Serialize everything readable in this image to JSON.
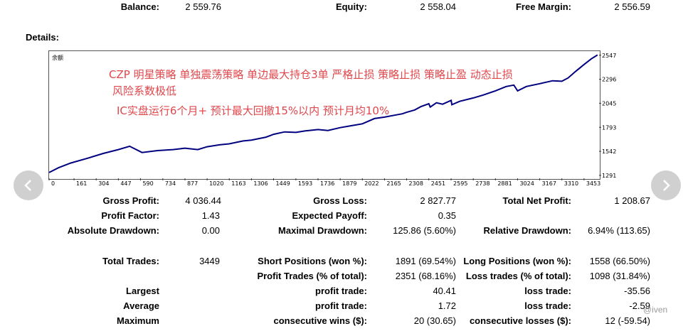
{
  "summary": {
    "balance_label": "Balance:",
    "balance_value": "2 559.76",
    "equity_label": "Equity:",
    "equity_value": "2 558.04",
    "free_margin_label": "Free Margin:",
    "free_margin_value": "2 556.59"
  },
  "details_label": "Details:",
  "chart_data": {
    "type": "line",
    "series": [
      {
        "name": "余额",
        "color": "#000080",
        "points": [
          [
            0,
            1320
          ],
          [
            60,
            1370
          ],
          [
            140,
            1420
          ],
          [
            250,
            1470
          ],
          [
            350,
            1520
          ],
          [
            447,
            1560
          ],
          [
            520,
            1595
          ],
          [
            600,
            1530
          ],
          [
            700,
            1550
          ],
          [
            800,
            1560
          ],
          [
            877,
            1575
          ],
          [
            960,
            1560
          ],
          [
            1020,
            1590
          ],
          [
            1100,
            1610
          ],
          [
            1163,
            1620
          ],
          [
            1250,
            1650
          ],
          [
            1306,
            1660
          ],
          [
            1400,
            1690
          ],
          [
            1449,
            1720
          ],
          [
            1520,
            1745
          ],
          [
            1593,
            1740
          ],
          [
            1650,
            1755
          ],
          [
            1736,
            1770
          ],
          [
            1800,
            1760
          ],
          [
            1879,
            1790
          ],
          [
            1950,
            1810
          ],
          [
            2022,
            1830
          ],
          [
            2100,
            1885
          ],
          [
            2165,
            1900
          ],
          [
            2230,
            1920
          ],
          [
            2280,
            1935
          ],
          [
            2308,
            1950
          ],
          [
            2360,
            1975
          ],
          [
            2400,
            2010
          ],
          [
            2451,
            2040
          ],
          [
            2460,
            2005
          ],
          [
            2500,
            2050
          ],
          [
            2540,
            2035
          ],
          [
            2595,
            2075
          ],
          [
            2600,
            2030
          ],
          [
            2650,
            2065
          ],
          [
            2738,
            2100
          ],
          [
            2800,
            2130
          ],
          [
            2881,
            2175
          ],
          [
            2950,
            2220
          ],
          [
            3000,
            2235
          ],
          [
            3024,
            2175
          ],
          [
            3080,
            2220
          ],
          [
            3167,
            2250
          ],
          [
            3250,
            2280
          ],
          [
            3310,
            2275
          ],
          [
            3350,
            2310
          ],
          [
            3400,
            2380
          ],
          [
            3453,
            2450
          ],
          [
            3500,
            2510
          ],
          [
            3540,
            2550
          ]
        ]
      }
    ],
    "x_ticks": [
      0,
      161,
      304,
      447,
      590,
      734,
      877,
      1020,
      1163,
      1306,
      1449,
      1593,
      1736,
      1879,
      2022,
      2165,
      2308,
      2451,
      2595,
      2738,
      2881,
      3024,
      3167,
      3310,
      3453
    ],
    "y_ticks": [
      2547,
      2296,
      2045,
      1793,
      1542,
      1291
    ],
    "xlim": [
      0,
      3550
    ],
    "ylim": [
      1260,
      2590
    ],
    "annotations": [
      "CZP 明星策略     单独震荡策略  单边最大持仓3单 严格止损 策略止损  策略止盈 动态止损",
      "风险系数极低",
      "IC实盘运行6个月+  预计最大回撤15%以内  预计月均10%"
    ],
    "annotation_color": "#e0474c"
  },
  "stats": {
    "gross_profit_label": "Gross Profit:",
    "gross_profit_value": "4 036.44",
    "gross_loss_label": "Gross Loss:",
    "gross_loss_value": "2 827.77",
    "total_net_profit_label": "Total Net Profit:",
    "total_net_profit_value": "1 208.67",
    "profit_factor_label": "Profit Factor:",
    "profit_factor_value": "1.43",
    "expected_payoff_label": "Expected Payoff:",
    "expected_payoff_value": "0.35",
    "abs_drawdown_label": "Absolute Drawdown:",
    "abs_drawdown_value": "0.00",
    "max_drawdown_label": "Maximal Drawdown:",
    "max_drawdown_value": "125.86 (5.60%)",
    "rel_drawdown_label": "Relative Drawdown:",
    "rel_drawdown_value": "6.94% (113.65)",
    "total_trades_label": "Total Trades:",
    "total_trades_value": "3449",
    "short_label": "Short Positions (won %):",
    "short_value": "1891 (69.54%)",
    "long_label": "Long Positions (won %):",
    "long_value": "1558 (66.50%)",
    "profit_trades_label": "Profit Trades (% of total):",
    "profit_trades_value": "2351 (68.16%)",
    "loss_trades_label": "Loss trades (% of total):",
    "loss_trades_value": "1098 (31.84%)",
    "largest_label": "Largest",
    "largest_profit_label": "profit trade:",
    "largest_profit_value": "40.41",
    "largest_loss_label": "loss trade:",
    "largest_loss_value": "-35.56",
    "average_label": "Average",
    "average_profit_label": "profit trade:",
    "average_profit_value": "1.72",
    "average_loss_label": "loss trade:",
    "average_loss_value": "-2.59",
    "maximum_label": "Maximum",
    "max_wins_label": "consecutive wins ($):",
    "max_wins_value": "20 (30.65)",
    "max_losses_label": "consecutive losses ($):",
    "max_losses_value": "12 (-59.54)"
  },
  "watermark": "@iven",
  "nav": {
    "prev_icon": "chevron-left-icon",
    "next_icon": "chevron-right-icon"
  }
}
